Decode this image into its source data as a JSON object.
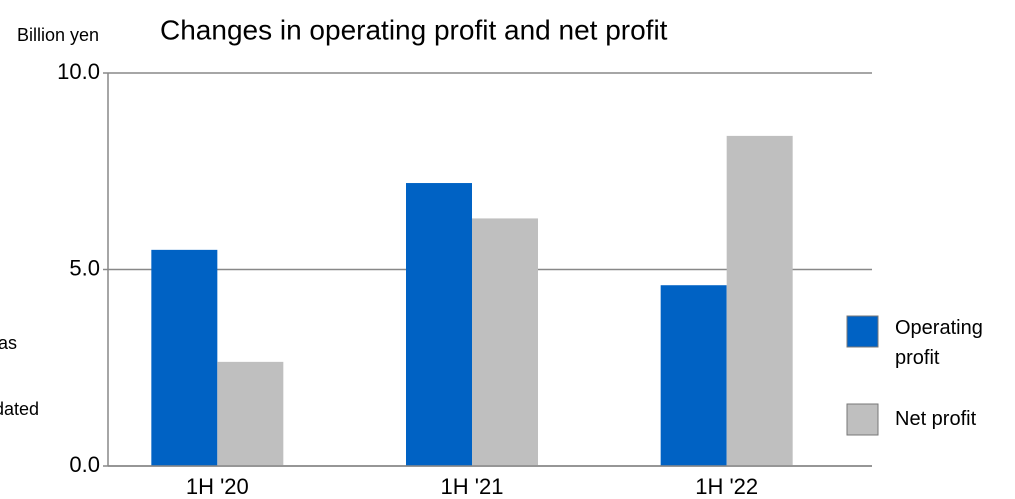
{
  "chart_data": {
    "type": "bar",
    "title": "Changes in operating profit and net profit",
    "y_axis_label": "Billion yen",
    "annotations": [
      "as",
      "dated"
    ],
    "categories": [
      "1H '20",
      "1H '21",
      "1H '22"
    ],
    "series": [
      {
        "name": "Operating profit",
        "color": "#0062c4",
        "values": [
          5.5,
          7.2,
          4.6
        ]
      },
      {
        "name": "Net profit",
        "color": "#bfbfbf",
        "values": [
          2.65,
          6.3,
          8.4
        ]
      }
    ],
    "ylim": [
      0,
      10
    ],
    "yticks": [
      {
        "value": 0,
        "label": "0.0"
      },
      {
        "value": 5,
        "label": "5.0"
      },
      {
        "value": 10,
        "label": "10.0"
      }
    ],
    "grid": true,
    "legend": "right"
  }
}
